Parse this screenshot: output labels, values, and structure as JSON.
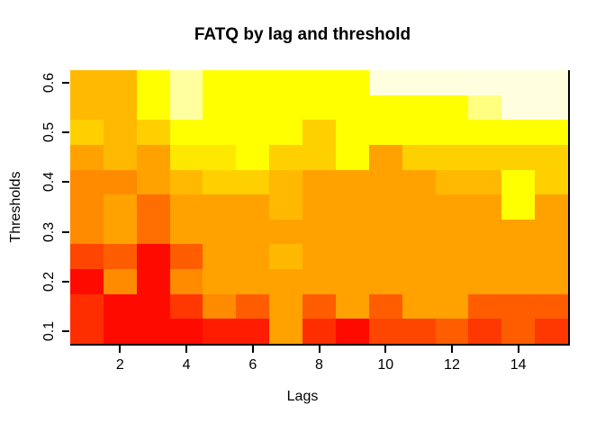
{
  "title": "FATQ by lag and threshold",
  "chart_data": {
    "type": "heatmap",
    "title": "FATQ by lag and threshold",
    "xlabel": "Lags",
    "ylabel": "Thresholds",
    "x_categories": [
      1,
      2,
      3,
      4,
      5,
      6,
      7,
      8,
      9,
      10,
      11,
      12,
      13,
      14,
      15
    ],
    "y_categories_top_to_bottom": [
      0.6,
      0.55,
      0.5,
      0.45,
      0.4,
      0.35,
      0.3,
      0.25,
      0.2,
      0.15,
      0.1
    ],
    "x_tick_values": [
      2,
      4,
      6,
      8,
      10,
      12,
      14
    ],
    "x_tick_labels": [
      "2",
      "4",
      "6",
      "8",
      "10",
      "12",
      "14"
    ],
    "y_tick_values": [
      0.1,
      0.2,
      0.3,
      0.4,
      0.5,
      0.6
    ],
    "y_tick_labels": [
      "0.1",
      "0.2",
      "0.3",
      "0.4",
      "0.5",
      "0.6"
    ],
    "legend_position": "none",
    "grid": "off",
    "palette_family": "heat-colors-red-to-cream",
    "palette_low_to_high": [
      "#FF0A00",
      "#FF1C00",
      "#FF2E00",
      "#FF3700",
      "#FF4600",
      "#FF5D00",
      "#FF6E00",
      "#FF8B00",
      "#FFA200",
      "#FFB900",
      "#FFD000",
      "#FFE800",
      "#FFFF00",
      "#FFFF80",
      "#FFFF9F",
      "#FFFFDF"
    ],
    "cell_colors_rows_top_to_bottom": [
      [
        "#FFB900",
        "#FFB900",
        "#FFFF00",
        "#FFFF9F",
        "#FFFF00",
        "#FFFF00",
        "#FFFF00",
        "#FFFF00",
        "#FFFF00",
        "#FFFFDF",
        "#FFFFDF",
        "#FFFFDF",
        "#FFFFDF",
        "#FFFFDF",
        "#FFFFDF"
      ],
      [
        "#FFB900",
        "#FFB900",
        "#FFFF00",
        "#FFFF9F",
        "#FFFF00",
        "#FFFF00",
        "#FFFF00",
        "#FFFF00",
        "#FFFF00",
        "#FFFF00",
        "#FFFF00",
        "#FFFF00",
        "#FFFF80",
        "#FFFFDF",
        "#FFFFDF"
      ],
      [
        "#FFD000",
        "#FFB900",
        "#FFD000",
        "#FFFF00",
        "#FFFF00",
        "#FFFF00",
        "#FFFF00",
        "#FFD000",
        "#FFFF00",
        "#FFFF00",
        "#FFFF00",
        "#FFFF00",
        "#FFFF00",
        "#FFFF00",
        "#FFFF00"
      ],
      [
        "#FFA200",
        "#FFB900",
        "#FFA200",
        "#FFE800",
        "#FFE800",
        "#FFFF00",
        "#FFD000",
        "#FFD000",
        "#FFFF00",
        "#FFA200",
        "#FFD000",
        "#FFD000",
        "#FFD000",
        "#FFD000",
        "#FFD000"
      ],
      [
        "#FF8B00",
        "#FF8B00",
        "#FFA200",
        "#FFB900",
        "#FFD000",
        "#FFD000",
        "#FFB900",
        "#FFA200",
        "#FFA200",
        "#FFA200",
        "#FFA200",
        "#FFB900",
        "#FFB900",
        "#FFFF00",
        "#FFD000"
      ],
      [
        "#FF8B00",
        "#FFA200",
        "#FF6E00",
        "#FFA200",
        "#FFA200",
        "#FFA200",
        "#FFB900",
        "#FFA200",
        "#FFA200",
        "#FFA200",
        "#FFA200",
        "#FFA200",
        "#FFA200",
        "#FFFF00",
        "#FFA200"
      ],
      [
        "#FF8B00",
        "#FFA200",
        "#FF6E00",
        "#FFA200",
        "#FFA200",
        "#FFA200",
        "#FFA200",
        "#FFA200",
        "#FFA200",
        "#FFA200",
        "#FFA200",
        "#FFA200",
        "#FFA200",
        "#FFA200",
        "#FFA200"
      ],
      [
        "#FF4600",
        "#FF5D00",
        "#FF0A00",
        "#FF5D00",
        "#FFA200",
        "#FFA200",
        "#FFB900",
        "#FFA200",
        "#FFA200",
        "#FFA200",
        "#FFA200",
        "#FFA200",
        "#FFA200",
        "#FFA200",
        "#FFA200"
      ],
      [
        "#FF0A00",
        "#FF8B00",
        "#FF0A00",
        "#FF8B00",
        "#FFA200",
        "#FFA200",
        "#FFA200",
        "#FFA200",
        "#FFA200",
        "#FFA200",
        "#FFA200",
        "#FFA200",
        "#FFA200",
        "#FFA200",
        "#FFA200"
      ],
      [
        "#FF2E00",
        "#FF0A00",
        "#FF0A00",
        "#FF3700",
        "#FF8B00",
        "#FF5D00",
        "#FFA200",
        "#FF5D00",
        "#FFA200",
        "#FF5D00",
        "#FFA200",
        "#FFA200",
        "#FF5D00",
        "#FF5D00",
        "#FF5D00"
      ],
      [
        "#FF2E00",
        "#FF0A00",
        "#FF0A00",
        "#FF0A00",
        "#FF1C00",
        "#FF1C00",
        "#FFA200",
        "#FF2E00",
        "#FF0A00",
        "#FF4600",
        "#FF4600",
        "#FF5D00",
        "#FF3700",
        "#FF5D00",
        "#FF3700"
      ]
    ],
    "axis_color": "#000000",
    "background_color": "#FFFFFF"
  }
}
